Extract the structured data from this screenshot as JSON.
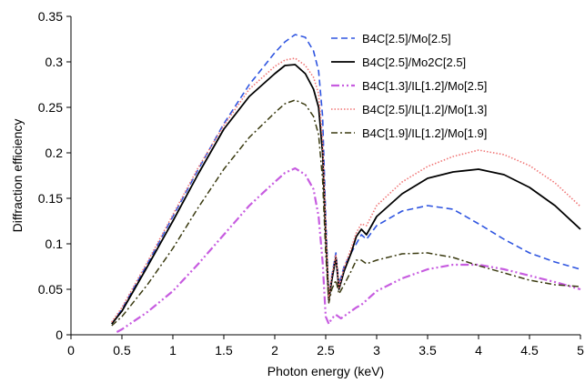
{
  "chart_data": {
    "type": "line",
    "title": "",
    "xlabel": "Photon energy (keV)",
    "ylabel": "Diffraction efficiency",
    "xlim": [
      0,
      5
    ],
    "ylim": [
      0,
      0.35
    ],
    "xticks": [
      "0",
      "0.5",
      "1",
      "1.5",
      "2",
      "2.5",
      "3",
      "3.5",
      "4",
      "4.5",
      "5"
    ],
    "yticks": [
      "0",
      "0.05",
      "0.1",
      "0.15",
      "0.2",
      "0.25",
      "0.3",
      "0.35"
    ],
    "grid": false,
    "legend_position": "top-right",
    "series": [
      {
        "name": "B4C[2.5]/Mo[2.5]",
        "color": "#2f55e0",
        "dash": "dashed",
        "points": [
          [
            0.4,
            0.012
          ],
          [
            0.5,
            0.028
          ],
          [
            0.75,
            0.078
          ],
          [
            1.0,
            0.13
          ],
          [
            1.25,
            0.182
          ],
          [
            1.5,
            0.232
          ],
          [
            1.75,
            0.275
          ],
          [
            2.0,
            0.31
          ],
          [
            2.1,
            0.322
          ],
          [
            2.2,
            0.33
          ],
          [
            2.3,
            0.327
          ],
          [
            2.38,
            0.312
          ],
          [
            2.43,
            0.29
          ],
          [
            2.47,
            0.24
          ],
          [
            2.5,
            0.13
          ],
          [
            2.53,
            0.04
          ],
          [
            2.56,
            0.065
          ],
          [
            2.6,
            0.09
          ],
          [
            2.63,
            0.055
          ],
          [
            2.68,
            0.075
          ],
          [
            2.75,
            0.09
          ],
          [
            2.8,
            0.1
          ],
          [
            2.85,
            0.11
          ],
          [
            2.9,
            0.105
          ],
          [
            3.0,
            0.12
          ],
          [
            3.25,
            0.136
          ],
          [
            3.5,
            0.142
          ],
          [
            3.75,
            0.138
          ],
          [
            4.0,
            0.122
          ],
          [
            4.25,
            0.105
          ],
          [
            4.5,
            0.09
          ],
          [
            4.75,
            0.08
          ],
          [
            5.0,
            0.072
          ]
        ]
      },
      {
        "name": "B4C[2.5]/Mo2C[2.5]",
        "color": "#000000",
        "dash": "solid",
        "points": [
          [
            0.4,
            0.012
          ],
          [
            0.5,
            0.026
          ],
          [
            0.75,
            0.075
          ],
          [
            1.0,
            0.125
          ],
          [
            1.25,
            0.177
          ],
          [
            1.5,
            0.226
          ],
          [
            1.75,
            0.262
          ],
          [
            2.0,
            0.287
          ],
          [
            2.1,
            0.296
          ],
          [
            2.2,
            0.297
          ],
          [
            2.3,
            0.287
          ],
          [
            2.38,
            0.27
          ],
          [
            2.43,
            0.25
          ],
          [
            2.47,
            0.2
          ],
          [
            2.5,
            0.11
          ],
          [
            2.53,
            0.038
          ],
          [
            2.56,
            0.06
          ],
          [
            2.6,
            0.085
          ],
          [
            2.63,
            0.05
          ],
          [
            2.68,
            0.07
          ],
          [
            2.75,
            0.09
          ],
          [
            2.8,
            0.108
          ],
          [
            2.85,
            0.116
          ],
          [
            2.9,
            0.11
          ],
          [
            3.0,
            0.13
          ],
          [
            3.25,
            0.155
          ],
          [
            3.5,
            0.172
          ],
          [
            3.75,
            0.179
          ],
          [
            4.0,
            0.182
          ],
          [
            4.25,
            0.176
          ],
          [
            4.5,
            0.162
          ],
          [
            4.75,
            0.142
          ],
          [
            5.0,
            0.116
          ]
        ]
      },
      {
        "name": "B4C[1.3]/IL[1.2]/Mo[2.5]",
        "color": "#c75ce0",
        "dash": "dashdotdot",
        "points": [
          [
            0.45,
            0.003
          ],
          [
            0.5,
            0.006
          ],
          [
            0.75,
            0.025
          ],
          [
            1.0,
            0.048
          ],
          [
            1.25,
            0.078
          ],
          [
            1.5,
            0.11
          ],
          [
            1.75,
            0.142
          ],
          [
            2.0,
            0.168
          ],
          [
            2.1,
            0.178
          ],
          [
            2.2,
            0.183
          ],
          [
            2.3,
            0.176
          ],
          [
            2.38,
            0.16
          ],
          [
            2.43,
            0.13
          ],
          [
            2.47,
            0.08
          ],
          [
            2.5,
            0.02
          ],
          [
            2.53,
            0.012
          ],
          [
            2.56,
            0.018
          ],
          [
            2.6,
            0.022
          ],
          [
            2.65,
            0.018
          ],
          [
            2.7,
            0.022
          ],
          [
            2.75,
            0.026
          ],
          [
            2.8,
            0.03
          ],
          [
            2.85,
            0.033
          ],
          [
            2.9,
            0.038
          ],
          [
            3.0,
            0.048
          ],
          [
            3.25,
            0.062
          ],
          [
            3.5,
            0.072
          ],
          [
            3.75,
            0.077
          ],
          [
            4.0,
            0.077
          ],
          [
            4.25,
            0.072
          ],
          [
            4.5,
            0.065
          ],
          [
            4.75,
            0.058
          ],
          [
            5.0,
            0.05
          ]
        ]
      },
      {
        "name": "B4C[2.5]/IL[1.2]/Mo[1.3]",
        "color": "#f07575",
        "dash": "dotted",
        "points": [
          [
            0.4,
            0.014
          ],
          [
            0.5,
            0.03
          ],
          [
            0.75,
            0.08
          ],
          [
            1.0,
            0.132
          ],
          [
            1.25,
            0.184
          ],
          [
            1.5,
            0.23
          ],
          [
            1.75,
            0.27
          ],
          [
            2.0,
            0.295
          ],
          [
            2.1,
            0.302
          ],
          [
            2.2,
            0.304
          ],
          [
            2.3,
            0.296
          ],
          [
            2.38,
            0.283
          ],
          [
            2.43,
            0.265
          ],
          [
            2.47,
            0.215
          ],
          [
            2.5,
            0.12
          ],
          [
            2.53,
            0.04
          ],
          [
            2.56,
            0.065
          ],
          [
            2.6,
            0.088
          ],
          [
            2.63,
            0.052
          ],
          [
            2.68,
            0.074
          ],
          [
            2.75,
            0.095
          ],
          [
            2.8,
            0.112
          ],
          [
            2.85,
            0.122
          ],
          [
            2.9,
            0.12
          ],
          [
            3.0,
            0.142
          ],
          [
            3.25,
            0.168
          ],
          [
            3.5,
            0.185
          ],
          [
            3.75,
            0.196
          ],
          [
            4.0,
            0.203
          ],
          [
            4.25,
            0.198
          ],
          [
            4.5,
            0.186
          ],
          [
            4.75,
            0.167
          ],
          [
            5.0,
            0.141
          ]
        ]
      },
      {
        "name": "B4C[1.9]/IL[1.2]/Mo[1.9]",
        "color": "#3a3a10",
        "dash": "dashdot",
        "points": [
          [
            0.4,
            0.01
          ],
          [
            0.5,
            0.02
          ],
          [
            0.75,
            0.055
          ],
          [
            1.0,
            0.095
          ],
          [
            1.25,
            0.14
          ],
          [
            1.5,
            0.182
          ],
          [
            1.75,
            0.217
          ],
          [
            2.0,
            0.244
          ],
          [
            2.1,
            0.254
          ],
          [
            2.2,
            0.258
          ],
          [
            2.3,
            0.253
          ],
          [
            2.38,
            0.24
          ],
          [
            2.43,
            0.22
          ],
          [
            2.47,
            0.17
          ],
          [
            2.5,
            0.09
          ],
          [
            2.53,
            0.035
          ],
          [
            2.56,
            0.05
          ],
          [
            2.6,
            0.06
          ],
          [
            2.63,
            0.045
          ],
          [
            2.68,
            0.055
          ],
          [
            2.75,
            0.07
          ],
          [
            2.8,
            0.082
          ],
          [
            2.85,
            0.082
          ],
          [
            2.9,
            0.078
          ],
          [
            3.0,
            0.082
          ],
          [
            3.25,
            0.089
          ],
          [
            3.5,
            0.09
          ],
          [
            3.75,
            0.085
          ],
          [
            4.0,
            0.076
          ],
          [
            4.25,
            0.068
          ],
          [
            4.5,
            0.06
          ],
          [
            4.75,
            0.055
          ],
          [
            5.0,
            0.053
          ]
        ]
      }
    ]
  }
}
